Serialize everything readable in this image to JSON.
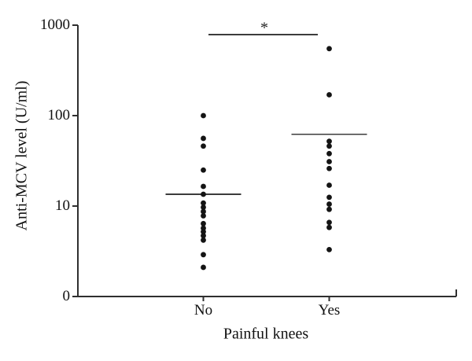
{
  "figure": {
    "background": "#ffffff"
  },
  "chart_data": {
    "type": "scatter",
    "title": "",
    "xlabel": "Painful knees",
    "ylabel": "Anti-MCV level (U/ml)",
    "y_scale": "log",
    "ylim_labels": [
      "0",
      "1000"
    ],
    "y_ticks": [
      {
        "label": "1000",
        "value": 1000
      },
      {
        "label": "100",
        "value": 100
      },
      {
        "label": "10",
        "value": 10
      },
      {
        "label": "0",
        "value": 1
      }
    ],
    "categories": [
      "No",
      "Yes"
    ],
    "series": [
      {
        "name": "No",
        "values": [
          100,
          56,
          46,
          25,
          16.5,
          13.5,
          10.8,
          9.7,
          8.7,
          7.8,
          6.4,
          5.7,
          5.2,
          4.7,
          4.2,
          2.9,
          2.1
        ],
        "center_line": 13.5
      },
      {
        "name": "Yes",
        "values": [
          550,
          170,
          52,
          46,
          38,
          31,
          26,
          17,
          12.5,
          10.5,
          9.2,
          6.6,
          5.8,
          3.3
        ],
        "center_line": 62
      }
    ],
    "significance": {
      "label": "*",
      "between": [
        "No",
        "Yes"
      ]
    },
    "legend": null,
    "grid": false,
    "colors": {
      "dot": "#141414",
      "center_line": "#3c3c3c",
      "significance_line": "#3c3c3c",
      "axis": "#2f2f2f",
      "text": "#111111"
    }
  }
}
